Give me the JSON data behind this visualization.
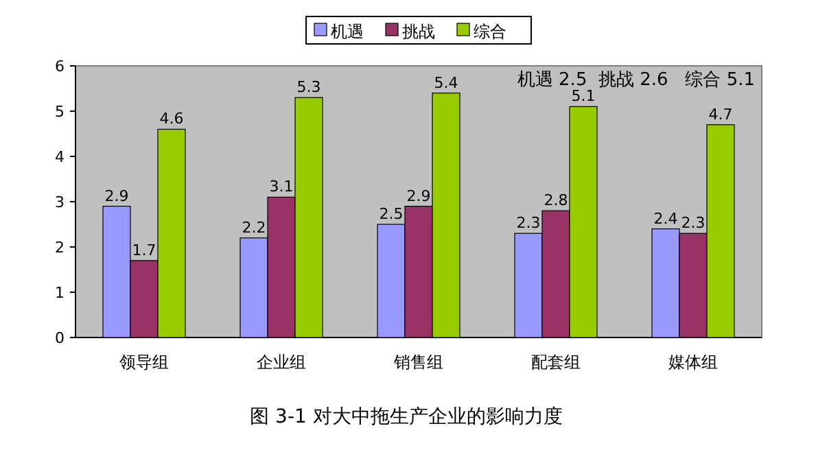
{
  "chart_data": {
    "type": "bar",
    "title": "图 3-1 对大中拖生产企业的影响力度",
    "categories": [
      "领导组",
      "企业组",
      "销售组",
      "配套组",
      "媒体组"
    ],
    "series": [
      {
        "name": "机遇",
        "color": "#9999ff",
        "values": [
          2.9,
          2.2,
          2.5,
          2.3,
          2.4
        ]
      },
      {
        "name": "挑战",
        "color": "#993366",
        "values": [
          1.7,
          3.1,
          2.9,
          2.8,
          2.3
        ]
      },
      {
        "name": "综合",
        "color": "#99cc00",
        "values": [
          4.6,
          5.3,
          5.4,
          5.1,
          4.7
        ]
      }
    ],
    "ylim": [
      0,
      6
    ],
    "yticks": [
      0,
      1,
      2,
      3,
      4,
      5,
      6
    ],
    "data_labels": true,
    "legend": "top",
    "annotations": [
      "机遇 2.5  挑战 2.6   综合 5.1"
    ]
  }
}
